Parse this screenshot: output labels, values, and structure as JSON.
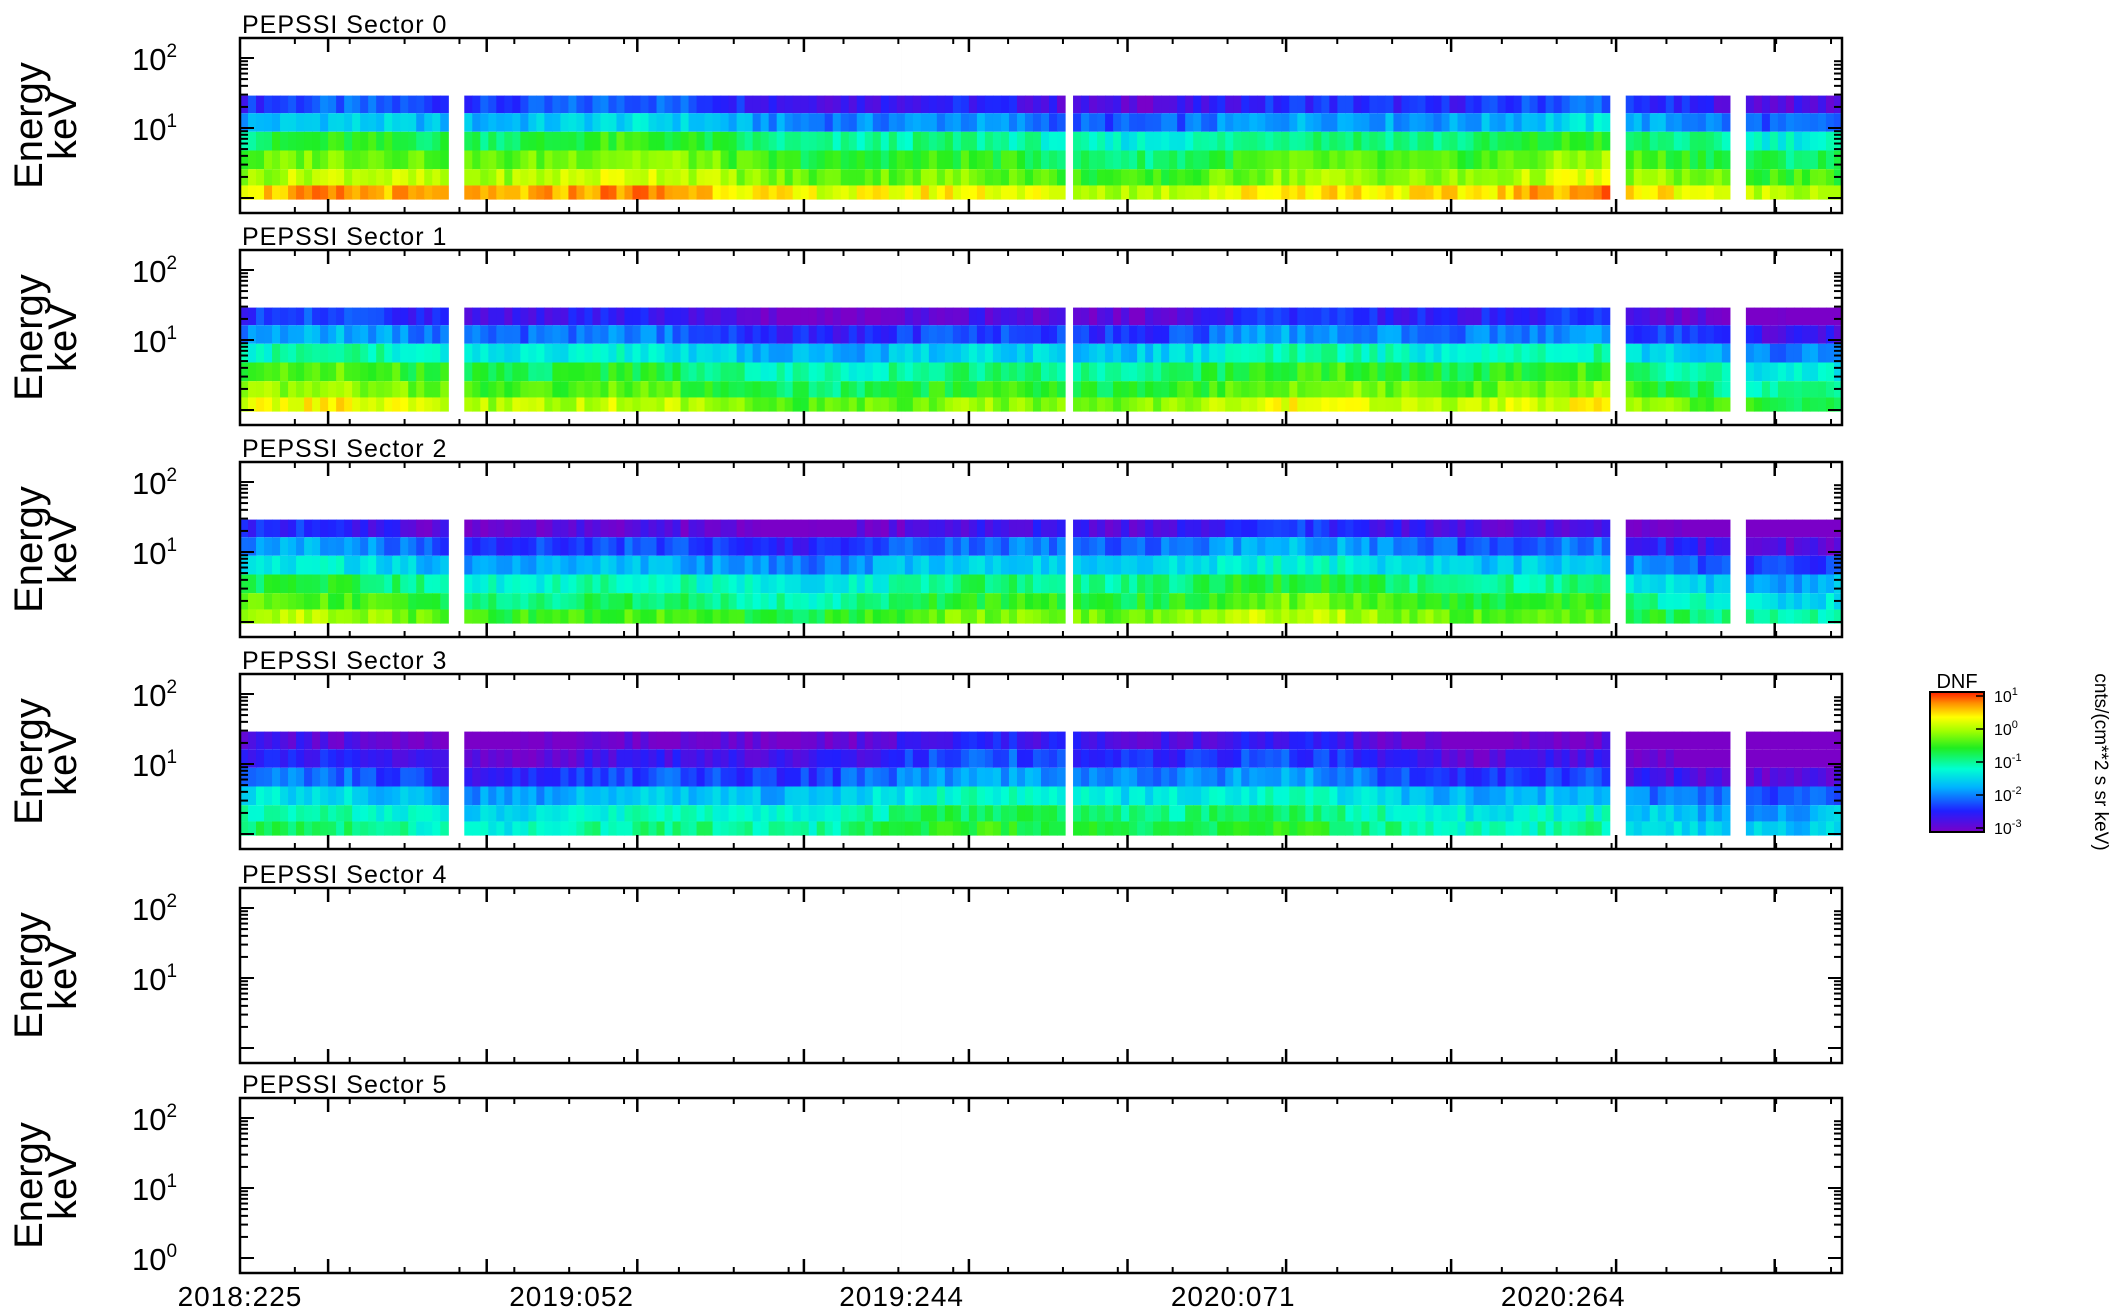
{
  "chart_data": {
    "type": "heatmap",
    "x_tick_labels": [
      "2018:225",
      "2019:052",
      "2019:244",
      "2020:071",
      "2020:264"
    ],
    "x_range": [
      "2018:225",
      "2021:060"
    ],
    "panel_ylabel": [
      "Energy",
      "keV"
    ],
    "y_tick_labels": [
      {
        "base": "10",
        "exp": "2"
      },
      {
        "base": "10",
        "exp": "1"
      },
      {
        "base": "10",
        "exp": "0"
      }
    ],
    "y_scale": "log",
    "energy_channels_keV": [
      22,
      12,
      6.5,
      3.5,
      1.9,
      1.2
    ],
    "panels": [
      {
        "title": "PEPSSI Sector 0",
        "level": [
          -2.4,
          -1.8,
          -0.9,
          -0.5,
          -0.2,
          0.35
        ],
        "has_data": true,
        "show_1e0": false
      },
      {
        "title": "PEPSSI Sector 1",
        "level": [
          -2.6,
          -2.1,
          -1.4,
          -0.8,
          -0.5,
          -0.1
        ],
        "has_data": true,
        "show_1e0": false
      },
      {
        "title": "PEPSSI Sector 2",
        "level": [
          -2.7,
          -2.1,
          -1.6,
          -1.0,
          -0.7,
          -0.35
        ],
        "has_data": true,
        "show_1e0": false
      },
      {
        "title": "PEPSSI Sector 3",
        "level": [
          -2.8,
          -2.5,
          -2.1,
          -1.5,
          -1.1,
          -0.9
        ],
        "has_data": true,
        "show_1e0": false
      },
      {
        "title": "PEPSSI Sector 4",
        "level": [],
        "has_data": false,
        "show_1e0": false
      },
      {
        "title": "PEPSSI Sector 5",
        "level": [],
        "has_data": false,
        "show_1e0": true
      }
    ],
    "data_gaps": [
      [
        0.132,
        0.135
      ],
      [
        0.137,
        0.142
      ],
      [
        0.198,
        0.2
      ],
      [
        0.203,
        0.205
      ],
      [
        0.516,
        0.521
      ],
      [
        0.613,
        0.617
      ],
      [
        0.857,
        0.864
      ],
      [
        0.929,
        0.933
      ],
      [
        0.937,
        0.94
      ],
      [
        0.944,
        0.946
      ],
      [
        0.95,
        0.952
      ],
      [
        0.955,
        0.957
      ],
      [
        0.96,
        0.962
      ],
      [
        0.965,
        0.967
      ]
    ],
    "colorbar": {
      "title": "DNF",
      "unit": "cnts/(cm**2 s sr keV)",
      "tick_labels": [
        {
          "base": "10",
          "exp": "1"
        },
        {
          "base": "10",
          "exp": "0"
        },
        {
          "base": "10",
          "exp": "-1"
        },
        {
          "base": "10",
          "exp": "-2"
        },
        {
          "base": "10",
          "exp": "-3"
        }
      ],
      "range": [
        -3,
        1
      ],
      "scale": "log"
    }
  }
}
